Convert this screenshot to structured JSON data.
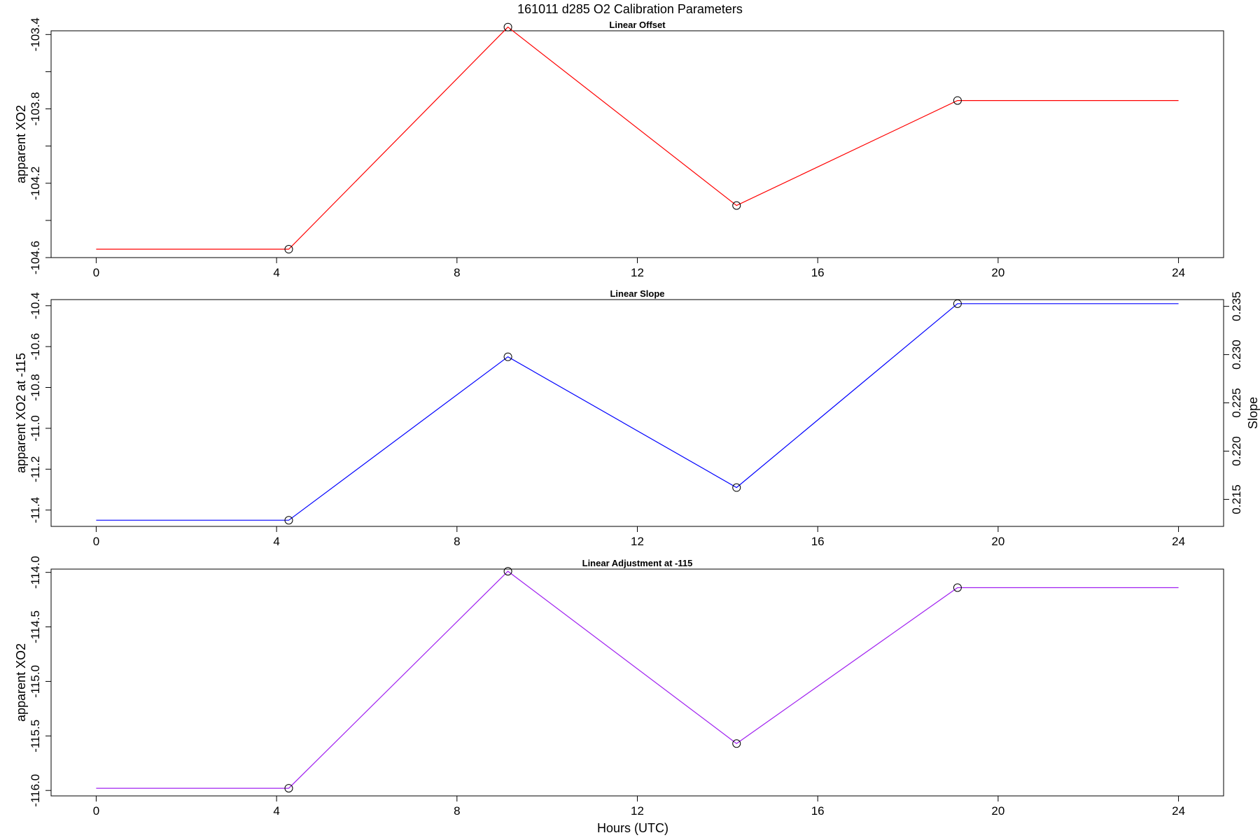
{
  "figure": {
    "title": "161011   d285   O2 Calibration Parameters",
    "xlabel": "Hours (UTC)"
  },
  "chart_data": [
    {
      "type": "line",
      "title": "Linear Offset",
      "ylabel": "apparent XO2",
      "xlim": [
        -1.0,
        25.0
      ],
      "ylim": [
        -104.6,
        -103.38
      ],
      "x_ticks": [
        0,
        4,
        8,
        12,
        16,
        20,
        24
      ],
      "y_ticks": [
        -104.6,
        -104.4,
        -104.2,
        -104.0,
        -103.8,
        -103.6,
        -103.4
      ],
      "y_tick_labels": [
        "-104.6",
        "",
        "-104.2",
        "",
        "-103.8",
        "",
        "-103.4"
      ],
      "color": "#ff0000",
      "line": {
        "x": [
          0,
          4.27,
          9.13,
          14.2,
          19.1,
          24.0
        ],
        "y": [
          -104.555,
          -104.555,
          -103.36,
          -104.32,
          -103.755,
          -103.755
        ]
      },
      "points": {
        "x": [
          4.27,
          9.13,
          14.2,
          19.1
        ],
        "y": [
          -104.555,
          -103.36,
          -104.32,
          -103.755
        ]
      }
    },
    {
      "type": "line",
      "title": "Linear Slope",
      "ylabel": "apparent XO2 at -115",
      "y2label": "Slope",
      "xlim": [
        -1.0,
        25.0
      ],
      "ylim": [
        -11.48,
        -10.37
      ],
      "y_ticks": [
        -11.4,
        -11.2,
        -11.0,
        -10.8,
        -10.6,
        -10.4
      ],
      "y_tick_labels": [
        "-11.4",
        "-11.2",
        "-11.0",
        "-10.8",
        "-10.6",
        "-10.4"
      ],
      "y2lim": [
        0.2122,
        0.2357
      ],
      "y2_ticks": [
        0.215,
        0.22,
        0.225,
        0.23,
        0.235
      ],
      "y2_tick_labels": [
        "0.215",
        "0.220",
        "0.225",
        "0.230",
        "0.235"
      ],
      "x_ticks": [
        0,
        4,
        8,
        12,
        16,
        20,
        24
      ],
      "color": "#0000ff",
      "line": {
        "x": [
          0,
          4.27,
          9.13,
          14.2,
          19.1,
          24.0
        ],
        "y": [
          -11.45,
          -11.45,
          -10.65,
          -11.29,
          -10.39,
          -10.39
        ]
      },
      "points": {
        "x": [
          4.27,
          9.13,
          14.2,
          19.1
        ],
        "y": [
          -11.45,
          -10.65,
          -11.29,
          -10.39
        ]
      }
    },
    {
      "type": "line",
      "title": "Linear Adjustment at -115",
      "ylabel": "apparent XO2",
      "xlim": [
        -1.0,
        25.0
      ],
      "ylim": [
        -116.05,
        -113.97
      ],
      "y_ticks": [
        -116.0,
        -115.5,
        -115.0,
        -114.5,
        -114.0
      ],
      "y_tick_labels": [
        "-116.0",
        "-115.5",
        "-115.0",
        "-114.5",
        "-114.0"
      ],
      "x_ticks": [
        0,
        4,
        8,
        12,
        16,
        20,
        24
      ],
      "color": "#a020f0",
      "line": {
        "x": [
          0,
          4.27,
          9.13,
          14.2,
          19.1,
          24.0
        ],
        "y": [
          -115.98,
          -115.98,
          -113.99,
          -115.57,
          -114.14,
          -114.14
        ]
      },
      "points": {
        "x": [
          4.27,
          9.13,
          14.2,
          19.1
        ],
        "y": [
          -115.98,
          -113.99,
          -115.57,
          -114.14
        ]
      }
    }
  ]
}
